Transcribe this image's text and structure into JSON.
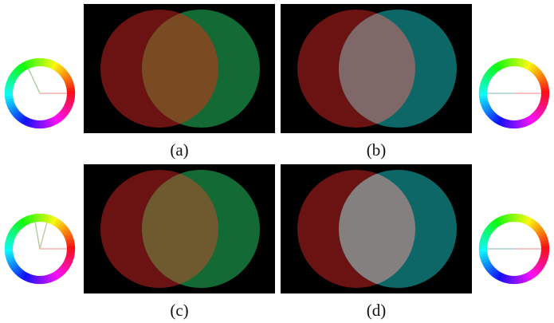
{
  "figure": {
    "background": "#ffffff",
    "panel_background": "#000000",
    "panels": [
      {
        "id": "a",
        "caption": "(a)",
        "left_circle": "#6b1212",
        "right_circle": "#146a34",
        "overlap": "#7a4a22"
      },
      {
        "id": "b",
        "caption": "(b)",
        "left_circle": "#6b1212",
        "right_circle": "#0e6767",
        "overlap": "#7e6868"
      },
      {
        "id": "c",
        "caption": "(c)",
        "left_circle": "#6b1212",
        "right_circle": "#146a34",
        "overlap": "#6e5a2e"
      },
      {
        "id": "d",
        "caption": "(d)",
        "left_circle": "#6b1212",
        "right_circle": "#0e6767",
        "overlap": "#858080"
      }
    ],
    "color_wheels": [
      {
        "id": "wheel-a",
        "indicators": [
          {
            "hue_deg": 0,
            "color": "#f4a0a0"
          },
          {
            "hue_deg": 115,
            "color": "#a8c898"
          }
        ]
      },
      {
        "id": "wheel-b",
        "indicators": [
          {
            "hue_deg": 0,
            "color": "#f4a0a0"
          },
          {
            "hue_deg": 180,
            "color": "#98c8c8"
          }
        ]
      },
      {
        "id": "wheel-c",
        "indicators": [
          {
            "hue_deg": 0,
            "color": "#f4a0a0"
          },
          {
            "hue_deg": 100,
            "color": "#a8c898"
          },
          {
            "hue_deg": 75,
            "color": "#c8c098"
          }
        ]
      },
      {
        "id": "wheel-d",
        "indicators": [
          {
            "hue_deg": 0,
            "color": "#f4a0a0"
          },
          {
            "hue_deg": 180,
            "color": "#98c8c8"
          }
        ]
      }
    ]
  }
}
